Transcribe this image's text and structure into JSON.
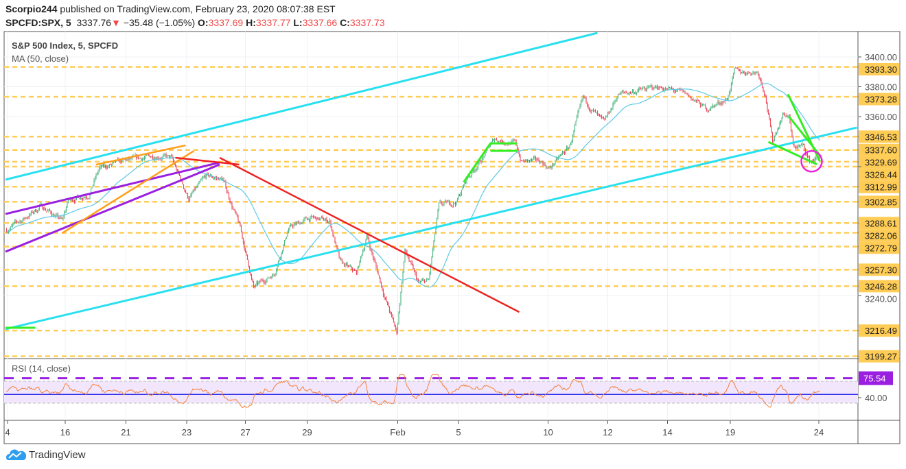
{
  "header": {
    "user": "Scorpio244",
    "published": "published on TradingView.com, February 23, 2020 08:07:38 EST",
    "symbol": "SPCFD:SPX, 5",
    "last": "3337.76",
    "arrow": "▼",
    "change": "−35.48 (−1.05%)",
    "o_label": "O:",
    "o": "3337.69",
    "h_label": "H:",
    "h": "3337.77",
    "l_label": "L:",
    "l": "3337.66",
    "c_label": "C:",
    "c": "3337.73"
  },
  "legend": {
    "title": "S&P 500 Index, 5, SPCFD",
    "ma": "MA (50, close)",
    "rsi": "RSI (14, close)"
  },
  "footer": {
    "brand": "TradingView"
  },
  "colors": {
    "up": "#53b987",
    "down": "#eb4d5c",
    "ma": "#5ec8e6",
    "level": "#ffcc55",
    "cyan": "#28e0f0",
    "purple": "#9a1fe0",
    "orange": "#ff9f1a",
    "red": "#ee2222",
    "green": "#33ee22",
    "magenta": "#ee22dd",
    "rsi": "#f5813a",
    "rsi_ma": "#2b2bee"
  },
  "chart_data": {
    "type": "candlestick",
    "title": "S&P 500 Index, 5, SPCFD",
    "ylim": [
      3195,
      3420
    ],
    "y_ticks": [
      "3400.00",
      "3380.00",
      "3360.00",
      "3240.00"
    ],
    "y_tick_values": [
      3400,
      3380,
      3360,
      3240
    ],
    "levels": [
      "3393.30",
      "3373.28",
      "3346.53",
      "3337.60",
      "3329.69",
      "3326.44",
      "3312.99",
      "3302.85",
      "3288.61",
      "3282.06",
      "3272.79",
      "3257.30",
      "3246.28",
      "3216.49",
      "3199.27"
    ],
    "x_ticks": [
      {
        "label": "4",
        "bar": 2
      },
      {
        "label": "16",
        "bar": 58
      },
      {
        "label": "21",
        "bar": 117
      },
      {
        "label": "23",
        "bar": 176
      },
      {
        "label": "27",
        "bar": 233
      },
      {
        "label": "29",
        "bar": 293
      },
      {
        "label": "Feb",
        "bar": 381
      },
      {
        "label": "5",
        "bar": 440
      },
      {
        "label": "10",
        "bar": 527
      },
      {
        "label": "12",
        "bar": 585
      },
      {
        "label": "14",
        "bar": 643
      },
      {
        "label": "19",
        "bar": 704
      },
      {
        "label": "24",
        "bar": 790
      }
    ],
    "price_path": [
      [
        1,
        3284
      ],
      [
        21,
        3293
      ],
      [
        35,
        3300
      ],
      [
        55,
        3290
      ],
      [
        61,
        3304
      ],
      [
        81,
        3308
      ],
      [
        91,
        3325
      ],
      [
        115,
        3330
      ],
      [
        148,
        3334
      ],
      [
        161,
        3332
      ],
      [
        178,
        3305
      ],
      [
        195,
        3320
      ],
      [
        211,
        3318
      ],
      [
        228,
        3285
      ],
      [
        241,
        3245
      ],
      [
        261,
        3255
      ],
      [
        275,
        3285
      ],
      [
        295,
        3292
      ],
      [
        315,
        3290
      ],
      [
        325,
        3262
      ],
      [
        341,
        3255
      ],
      [
        351,
        3280
      ],
      [
        368,
        3240
      ],
      [
        380,
        3215
      ],
      [
        388,
        3270
      ],
      [
        401,
        3248
      ],
      [
        411,
        3250
      ],
      [
        421,
        3300
      ],
      [
        438,
        3303
      ],
      [
        448,
        3318
      ],
      [
        461,
        3330
      ],
      [
        475,
        3345
      ],
      [
        495,
        3342
      ],
      [
        501,
        3330
      ],
      [
        521,
        3330
      ],
      [
        528,
        3325
      ],
      [
        548,
        3340
      ],
      [
        561,
        3372
      ],
      [
        581,
        3355
      ],
      [
        595,
        3375
      ],
      [
        635,
        3380
      ],
      [
        661,
        3375
      ],
      [
        681,
        3365
      ],
      [
        701,
        3372
      ],
      [
        708,
        3390
      ],
      [
        731,
        3390
      ],
      [
        738,
        3375
      ],
      [
        745,
        3343
      ],
      [
        755,
        3362
      ],
      [
        761,
        3360
      ],
      [
        765,
        3340
      ],
      [
        775,
        3340
      ],
      [
        781,
        3330
      ],
      [
        791,
        3333
      ]
    ],
    "drawings": [
      {
        "color": "cyan",
        "w": 3,
        "pts": [
          [
            0,
            3317.7
          ],
          [
            575,
            3416.1
          ]
        ]
      },
      {
        "color": "cyan",
        "w": 3,
        "pts": [
          [
            0,
            3217.5
          ],
          [
            827,
            3352.6
          ]
        ]
      },
      {
        "color": "purple",
        "w": 3,
        "pts": [
          [
            0,
            3294.7
          ],
          [
            208,
            3329.2
          ]
        ]
      },
      {
        "color": "purple",
        "w": 3,
        "pts": [
          [
            0,
            3269.4
          ],
          [
            208,
            3327.8
          ]
        ]
      },
      {
        "color": "orange",
        "w": 2.5,
        "pts": [
          [
            55,
            3281.8
          ],
          [
            183,
            3337
          ]
        ]
      },
      {
        "color": "orange",
        "w": 2.5,
        "pts": [
          [
            88,
            3327.8
          ],
          [
            175,
            3340.7
          ]
        ]
      },
      {
        "color": "red",
        "w": 2.5,
        "pts": [
          [
            208,
            3332.4
          ],
          [
            499,
            3228.9
          ]
        ]
      },
      {
        "color": "red",
        "w": 2.5,
        "pts": [
          [
            165,
            3332.4
          ],
          [
            227,
            3327.8
          ]
        ]
      },
      {
        "color": "green",
        "w": 3,
        "pts": [
          [
            0,
            3218.4
          ],
          [
            29,
            3218.4
          ]
        ]
      },
      {
        "color": "green",
        "w": 3,
        "pts": [
          [
            445,
            3316
          ],
          [
            471,
            3342
          ],
          [
            497,
            3342
          ]
        ]
      },
      {
        "color": "green",
        "w": 3,
        "pts": [
          [
            471,
            3337
          ],
          [
            497,
            3337
          ]
        ]
      },
      {
        "color": "green",
        "w": 3,
        "pts": [
          [
            741,
            3343
          ],
          [
            788,
            3328
          ]
        ]
      },
      {
        "color": "green",
        "w": 3,
        "pts": [
          [
            760,
            3375
          ],
          [
            791,
            3330
          ]
        ]
      },
      {
        "color": "green",
        "w": 3,
        "pts": [
          [
            761,
            3360
          ],
          [
            791,
            3334
          ]
        ]
      }
    ],
    "circle": {
      "bar": 783,
      "price": 3330,
      "color": "magenta"
    },
    "rsi": {
      "label": "RSI (14, close)",
      "last": "75.54",
      "tick": "40.00",
      "tick_value": 40,
      "band": [
        70,
        30
      ],
      "ma_level": 46
    }
  }
}
